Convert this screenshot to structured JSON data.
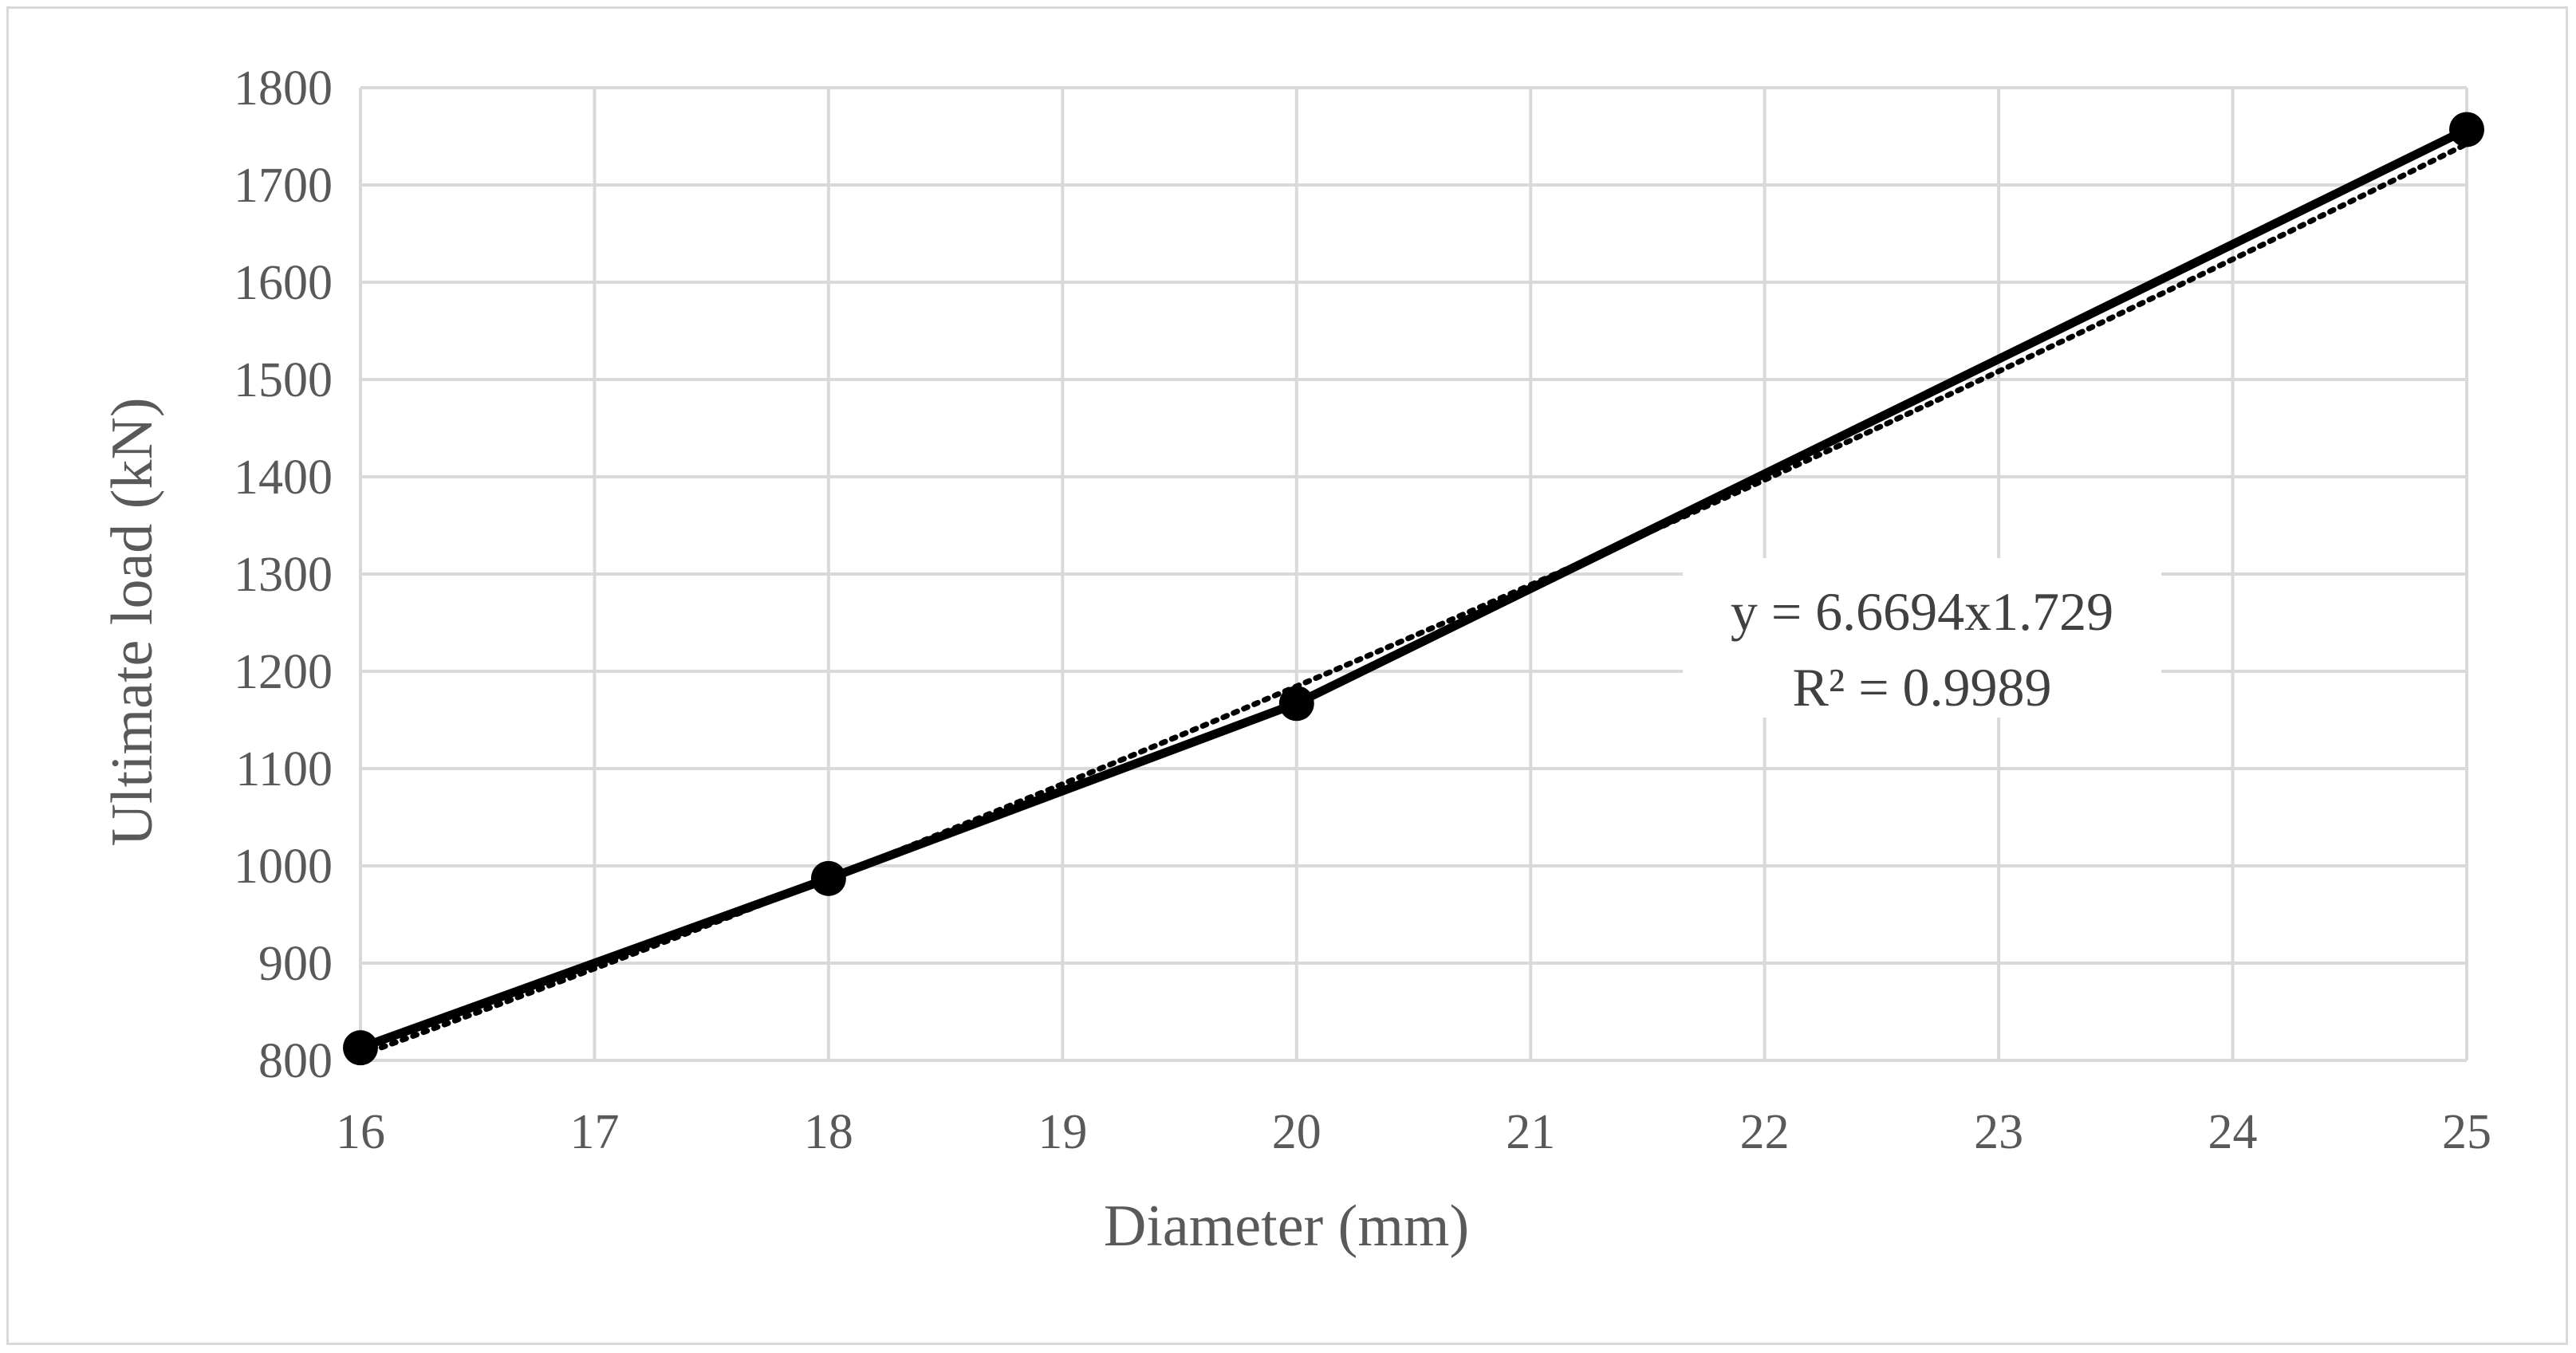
{
  "chart_data": {
    "type": "line",
    "title": "",
    "xlabel": "Diameter (mm)",
    "ylabel": "Ultimate load (kN)",
    "xlim": [
      16,
      25
    ],
    "ylim": [
      800,
      1800
    ],
    "xticks": [
      16,
      17,
      18,
      19,
      20,
      21,
      22,
      23,
      24,
      25
    ],
    "yticks": [
      800,
      900,
      1000,
      1100,
      1200,
      1300,
      1400,
      1500,
      1600,
      1700,
      1800
    ],
    "grid": true,
    "legend": "none",
    "series": [
      {
        "x": [
          16,
          18,
          20,
          25
        ],
        "y": [
          813,
          987,
          1167,
          1757
        ],
        "color": "#000000",
        "marker": "circle"
      }
    ],
    "trendline": {
      "type": "power",
      "style": "dotted",
      "coef": 6.6694,
      "exponent": 1.729,
      "equation": "y = 6.6694x1.729",
      "r2_label": "R² = 0.9989"
    }
  }
}
